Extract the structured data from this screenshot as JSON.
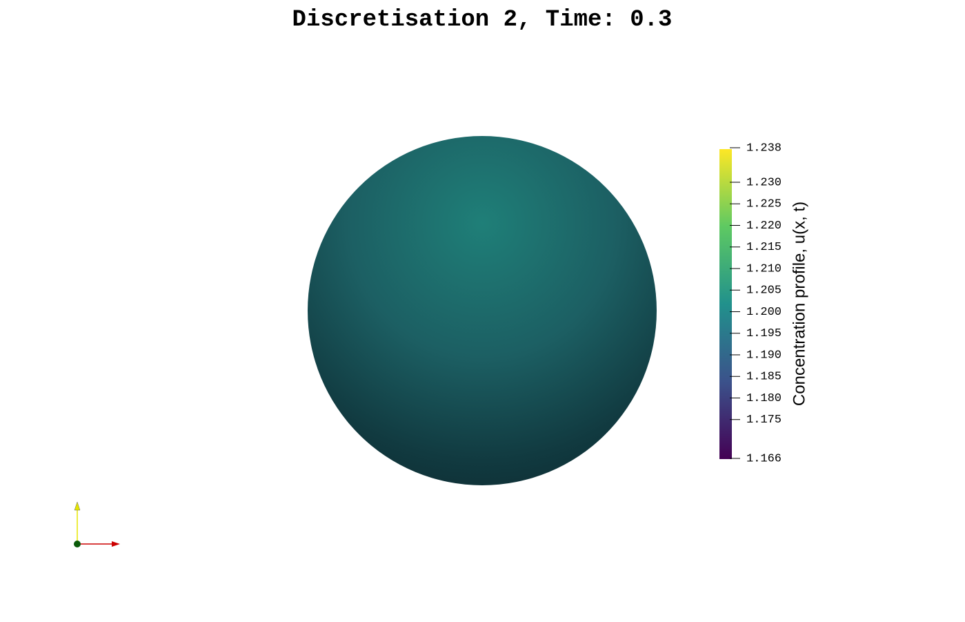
{
  "chart_data": {
    "type": "surface",
    "title": "Discretisation 2, Time: 0.3",
    "colorbar": {
      "label": "Concentration profile, u(x, t)",
      "lim": [
        1.166,
        1.238
      ],
      "ticks": [
        1.238,
        {
          "value": 1.23,
          "label": "1.230"
        },
        1.225,
        {
          "value": 1.22,
          "label": "1.220"
        },
        1.215,
        {
          "value": 1.21,
          "label": "1.210"
        },
        1.205,
        {
          "value": 1.2,
          "label": "1.200"
        },
        1.195,
        {
          "value": 1.19,
          "label": "1.190"
        },
        1.185,
        {
          "value": 1.18,
          "label": "1.180"
        },
        1.175,
        1.166
      ],
      "colormap": [
        "#440154",
        "#3b528b",
        "#21918c",
        "#5ec962",
        "#fde725"
      ]
    }
  }
}
